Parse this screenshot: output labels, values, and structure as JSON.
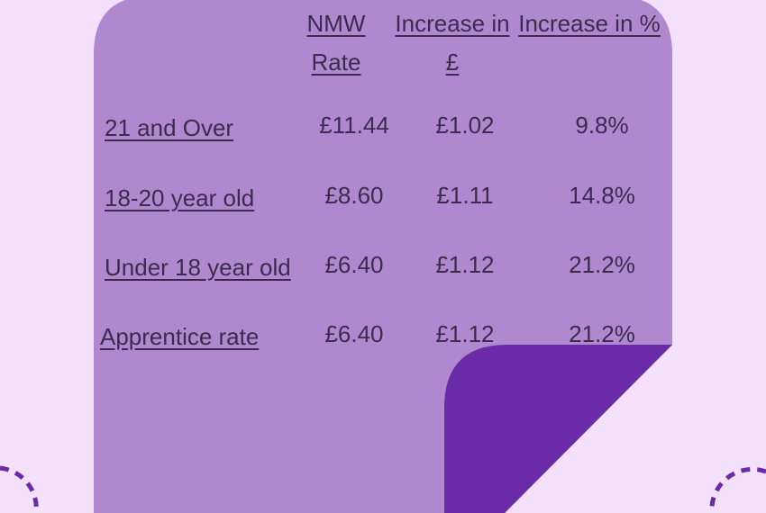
{
  "table": {
    "headers": [
      "NMW Rate",
      "Increase in £",
      "Increase in %"
    ],
    "rows": [
      [
        "21 and Over",
        "£11.44",
        "£1.02",
        "9.8%"
      ],
      [
        "18-20 year old",
        "£8.60",
        "£1.11",
        "14.8%"
      ],
      [
        "Under 18 year old",
        "£6.40",
        "£1.12",
        "21.2%"
      ],
      [
        "Apprentice rate",
        "£6.40",
        "£1.12",
        "21.2%"
      ]
    ]
  }
}
